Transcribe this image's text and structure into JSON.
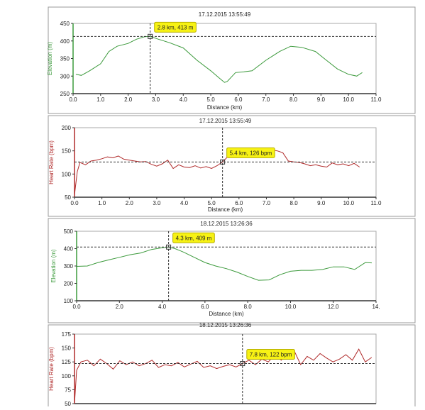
{
  "chart_data": [
    {
      "type": "line",
      "title": "17.12.2015 13:55:49",
      "xlabel": "Distance (km)",
      "ylabel": "Elevation (m)",
      "color": "#3c9a3c",
      "x": [
        0.1,
        0.3,
        0.6,
        1.0,
        1.3,
        1.6,
        2.0,
        2.3,
        2.6,
        2.8,
        3.1,
        3.5,
        4.0,
        4.5,
        5.0,
        5.3,
        5.5,
        5.6,
        5.9,
        6.2,
        6.5,
        7.0,
        7.5,
        7.9,
        8.3,
        8.8,
        9.2,
        9.6,
        10.0,
        10.3,
        10.5
      ],
      "values": [
        305,
        302,
        315,
        335,
        370,
        385,
        393,
        405,
        412,
        413,
        405,
        395,
        380,
        345,
        315,
        295,
        282,
        285,
        310,
        312,
        315,
        345,
        370,
        385,
        382,
        370,
        345,
        320,
        305,
        300,
        310
      ],
      "xlim": [
        0,
        11
      ],
      "ylim": [
        250,
        450
      ],
      "xticks": [
        {
          "value": 0,
          "label": "0.0"
        },
        {
          "value": 1,
          "label": "1.0"
        },
        {
          "value": 2,
          "label": "2.0"
        },
        {
          "value": 3,
          "label": "3.0"
        },
        {
          "value": 4,
          "label": "4.0"
        },
        {
          "value": 5,
          "label": "5.0"
        },
        {
          "value": 6,
          "label": "6.0"
        },
        {
          "value": 7,
          "label": "7.0"
        },
        {
          "value": 8,
          "label": "8.0"
        },
        {
          "value": 9,
          "label": "9.0"
        },
        {
          "value": 10,
          "label": "10.0"
        },
        {
          "value": 11,
          "label": "11.0"
        }
      ],
      "yticks": [
        250,
        300,
        350,
        400,
        450
      ],
      "cursor": {
        "x": 2.8,
        "y": 413,
        "label": "2.8 km, 413 m"
      }
    },
    {
      "type": "line",
      "title": "17.12.2015 13:55:49",
      "xlabel": "Distance (km)",
      "ylabel": "Heart Rate (bpm)",
      "color": "#b02a2a",
      "x": [
        0,
        0.1,
        0.2,
        0.4,
        0.6,
        0.8,
        1.0,
        1.2,
        1.4,
        1.6,
        1.8,
        2.0,
        2.2,
        2.4,
        2.6,
        2.8,
        3.0,
        3.2,
        3.4,
        3.6,
        3.8,
        4.0,
        4.2,
        4.4,
        4.6,
        4.8,
        5.0,
        5.2,
        5.4,
        5.6,
        5.8,
        6.0,
        6.2,
        6.4,
        6.6,
        6.8,
        7.0,
        7.2,
        7.4,
        7.6,
        7.8,
        8.0,
        8.2,
        8.4,
        8.6,
        8.8,
        9.0,
        9.2,
        9.4,
        9.6,
        9.8,
        10.0,
        10.2,
        10.4
      ],
      "values": [
        55,
        105,
        125,
        120,
        128,
        130,
        133,
        137,
        135,
        139,
        132,
        130,
        128,
        126,
        127,
        121,
        117,
        122,
        130,
        112,
        120,
        115,
        114,
        118,
        113,
        116,
        112,
        118,
        126,
        138,
        140,
        142,
        138,
        142,
        145,
        143,
        148,
        152,
        150,
        146,
        128,
        126,
        125,
        122,
        118,
        120,
        117,
        115,
        124,
        120,
        122,
        118,
        123,
        115
      ],
      "xlim": [
        0,
        11
      ],
      "ylim": [
        50,
        200
      ],
      "xticks": [
        {
          "value": 0,
          "label": "0.0"
        },
        {
          "value": 1,
          "label": "1.0"
        },
        {
          "value": 2,
          "label": "2.0"
        },
        {
          "value": 3,
          "label": "3.0"
        },
        {
          "value": 4,
          "label": "4.0"
        },
        {
          "value": 5,
          "label": "5.0"
        },
        {
          "value": 6,
          "label": "6.0"
        },
        {
          "value": 7,
          "label": "7.0"
        },
        {
          "value": 8,
          "label": "8.0"
        },
        {
          "value": 9,
          "label": "9.0"
        },
        {
          "value": 10,
          "label": "10.0"
        },
        {
          "value": 11,
          "label": "11.0"
        }
      ],
      "yticks": [
        50,
        100,
        150,
        200
      ],
      "cursor": {
        "x": 5.4,
        "y": 126,
        "label": "5.4 km, 126 bpm"
      }
    },
    {
      "type": "line",
      "title": "18.12.2015 13:26:36",
      "xlabel": "Distance (km)",
      "ylabel": "Elevation (m)",
      "color": "#3c9a3c",
      "x": [
        0,
        0.5,
        1,
        1.5,
        2,
        2.5,
        3,
        3.5,
        4,
        4.3,
        4.6,
        5,
        5.5,
        6,
        6.5,
        7,
        7.5,
        8,
        8.5,
        9,
        9.5,
        10,
        10.5,
        11,
        11.5,
        12,
        12.5,
        13,
        13.5,
        13.8
      ],
      "values": [
        298,
        300,
        320,
        335,
        350,
        365,
        375,
        395,
        405,
        409,
        400,
        380,
        350,
        320,
        300,
        285,
        265,
        240,
        218,
        220,
        250,
        270,
        275,
        275,
        280,
        295,
        295,
        280,
        320,
        318
      ],
      "xlim": [
        0,
        14
      ],
      "ylim": [
        100,
        500
      ],
      "xticks": [
        {
          "value": 0,
          "label": "0.0"
        },
        {
          "value": 2,
          "label": "2.0"
        },
        {
          "value": 4,
          "label": "4.0"
        },
        {
          "value": 6,
          "label": "6.0"
        },
        {
          "value": 8,
          "label": "8.0"
        },
        {
          "value": 10,
          "label": "10.0"
        },
        {
          "value": 12,
          "label": "12.0"
        },
        {
          "value": 14,
          "label": "14."
        }
      ],
      "yticks": [
        100,
        200,
        300,
        400,
        500
      ],
      "cursor": {
        "x": 4.3,
        "y": 409,
        "label": "4.3 km, 409 m"
      }
    },
    {
      "type": "line",
      "title": "18.12.2015 13:26:36",
      "ylabel": "Heart Rate (bpm)",
      "color": "#b02a2a",
      "x": [
        0,
        0.1,
        0.3,
        0.6,
        0.9,
        1.2,
        1.5,
        1.8,
        2.1,
        2.4,
        2.7,
        3.0,
        3.3,
        3.6,
        3.9,
        4.2,
        4.5,
        4.8,
        5.1,
        5.4,
        5.7,
        6.0,
        6.3,
        6.6,
        6.9,
        7.2,
        7.5,
        7.8,
        8.1,
        8.4,
        8.7,
        9.0,
        9.3,
        9.6,
        9.9,
        10.2,
        10.5,
        10.8,
        11.1,
        11.4,
        11.7,
        12.0,
        12.3,
        12.6,
        12.9,
        13.2,
        13.5,
        13.8
      ],
      "values": [
        50,
        110,
        125,
        128,
        118,
        130,
        122,
        112,
        127,
        120,
        125,
        118,
        122,
        128,
        115,
        120,
        118,
        124,
        116,
        121,
        126,
        115,
        118,
        113,
        117,
        120,
        116,
        122,
        128,
        120,
        130,
        125,
        138,
        128,
        142,
        145,
        120,
        135,
        128,
        140,
        132,
        125,
        130,
        138,
        128,
        148,
        125,
        133
      ],
      "xlim": [
        0,
        14
      ],
      "ylim": [
        50,
        175
      ],
      "yticks": [
        50,
        75,
        100,
        125,
        150,
        175
      ],
      "cursor": {
        "x": 7.8,
        "y": 122,
        "label": "7.8 km, 122 bpm"
      }
    }
  ]
}
